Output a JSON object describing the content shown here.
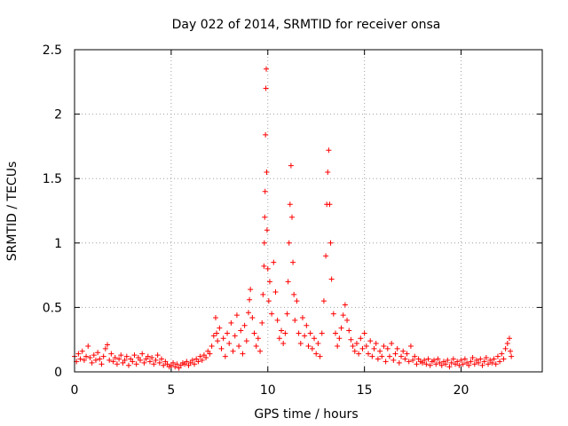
{
  "chart_data": {
    "type": "scatter",
    "title": "Day 022 of 2014, SRMTID for receiver onsa",
    "xlabel": "GPS time / hours",
    "ylabel": "SRMTID / TECUs",
    "xlim": [
      0,
      24.2
    ],
    "ylim": [
      0,
      2.5
    ],
    "x_ticks": [
      0,
      5,
      10,
      15,
      20
    ],
    "y_ticks": [
      0,
      0.5,
      1,
      1.5,
      2,
      2.5
    ],
    "x_tick_labels": [
      "0",
      "5",
      "10",
      "15",
      "20"
    ],
    "y_tick_labels": [
      "0",
      "0.5",
      "1",
      "1.5",
      "2",
      "2.5"
    ],
    "grid": true,
    "marker": "+",
    "series_color": "#ff0000",
    "series": [
      {
        "name": "SRMTID",
        "points": [
          [
            0.0,
            0.12
          ],
          [
            0.1,
            0.08
          ],
          [
            0.2,
            0.14
          ],
          [
            0.3,
            0.1
          ],
          [
            0.4,
            0.16
          ],
          [
            0.5,
            0.09
          ],
          [
            0.6,
            0.12
          ],
          [
            0.7,
            0.2
          ],
          [
            0.8,
            0.11
          ],
          [
            0.9,
            0.07
          ],
          [
            1.0,
            0.13
          ],
          [
            1.1,
            0.09
          ],
          [
            1.2,
            0.15
          ],
          [
            1.3,
            0.1
          ],
          [
            1.4,
            0.06
          ],
          [
            1.5,
            0.12
          ],
          [
            1.6,
            0.18
          ],
          [
            1.7,
            0.21
          ],
          [
            1.8,
            0.09
          ],
          [
            1.9,
            0.14
          ],
          [
            2.0,
            0.08
          ],
          [
            2.1,
            0.11
          ],
          [
            2.2,
            0.06
          ],
          [
            2.3,
            0.1
          ],
          [
            2.4,
            0.13
          ],
          [
            2.5,
            0.07
          ],
          [
            2.6,
            0.09
          ],
          [
            2.7,
            0.12
          ],
          [
            2.8,
            0.05
          ],
          [
            2.9,
            0.1
          ],
          [
            3.0,
            0.08
          ],
          [
            3.1,
            0.13
          ],
          [
            3.2,
            0.06
          ],
          [
            3.3,
            0.11
          ],
          [
            3.4,
            0.09
          ],
          [
            3.5,
            0.14
          ],
          [
            3.6,
            0.07
          ],
          [
            3.7,
            0.1
          ],
          [
            3.8,
            0.12
          ],
          [
            3.9,
            0.08
          ],
          [
            4.0,
            0.11
          ],
          [
            4.1,
            0.06
          ],
          [
            4.2,
            0.09
          ],
          [
            4.3,
            0.13
          ],
          [
            4.4,
            0.07
          ],
          [
            4.5,
            0.1
          ],
          [
            4.6,
            0.05
          ],
          [
            4.7,
            0.08
          ],
          [
            4.8,
            0.06
          ],
          [
            4.9,
            0.04
          ],
          [
            5.0,
            0.05
          ],
          [
            5.1,
            0.07
          ],
          [
            5.2,
            0.04
          ],
          [
            5.3,
            0.06
          ],
          [
            5.4,
            0.03
          ],
          [
            5.5,
            0.05
          ],
          [
            5.6,
            0.07
          ],
          [
            5.7,
            0.06
          ],
          [
            5.8,
            0.08
          ],
          [
            5.9,
            0.05
          ],
          [
            6.0,
            0.07
          ],
          [
            6.1,
            0.09
          ],
          [
            6.2,
            0.06
          ],
          [
            6.3,
            0.1
          ],
          [
            6.4,
            0.08
          ],
          [
            6.5,
            0.12
          ],
          [
            6.6,
            0.09
          ],
          [
            6.7,
            0.13
          ],
          [
            6.8,
            0.11
          ],
          [
            6.9,
            0.16
          ],
          [
            7.0,
            0.14
          ],
          [
            7.1,
            0.2
          ],
          [
            7.2,
            0.28
          ],
          [
            7.3,
            0.42
          ],
          [
            7.35,
            0.3
          ],
          [
            7.4,
            0.24
          ],
          [
            7.5,
            0.34
          ],
          [
            7.6,
            0.18
          ],
          [
            7.7,
            0.26
          ],
          [
            7.8,
            0.12
          ],
          [
            7.9,
            0.3
          ],
          [
            8.0,
            0.22
          ],
          [
            8.1,
            0.38
          ],
          [
            8.2,
            0.16
          ],
          [
            8.3,
            0.28
          ],
          [
            8.4,
            0.44
          ],
          [
            8.5,
            0.2
          ],
          [
            8.6,
            0.32
          ],
          [
            8.7,
            0.14
          ],
          [
            8.8,
            0.36
          ],
          [
            8.9,
            0.24
          ],
          [
            9.0,
            0.46
          ],
          [
            9.05,
            0.56
          ],
          [
            9.1,
            0.64
          ],
          [
            9.2,
            0.42
          ],
          [
            9.3,
            0.3
          ],
          [
            9.4,
            0.2
          ],
          [
            9.5,
            0.26
          ],
          [
            9.6,
            0.16
          ],
          [
            9.7,
            0.38
          ],
          [
            9.75,
            0.6
          ],
          [
            9.8,
            0.82
          ],
          [
            9.82,
            1.0
          ],
          [
            9.84,
            1.2
          ],
          [
            9.86,
            1.4
          ],
          [
            9.88,
            1.84
          ],
          [
            9.9,
            2.2
          ],
          [
            9.92,
            2.35
          ],
          [
            9.94,
            1.55
          ],
          [
            9.96,
            1.1
          ],
          [
            10.0,
            0.8
          ],
          [
            10.05,
            0.55
          ],
          [
            10.1,
            0.7
          ],
          [
            10.2,
            0.45
          ],
          [
            10.3,
            0.85
          ],
          [
            10.4,
            0.62
          ],
          [
            10.5,
            0.4
          ],
          [
            10.6,
            0.26
          ],
          [
            10.7,
            0.32
          ],
          [
            10.8,
            0.22
          ],
          [
            10.9,
            0.3
          ],
          [
            11.0,
            0.45
          ],
          [
            11.05,
            0.7
          ],
          [
            11.1,
            1.0
          ],
          [
            11.15,
            1.3
          ],
          [
            11.2,
            1.6
          ],
          [
            11.25,
            1.2
          ],
          [
            11.3,
            0.85
          ],
          [
            11.35,
            0.6
          ],
          [
            11.4,
            0.4
          ],
          [
            11.5,
            0.55
          ],
          [
            11.6,
            0.3
          ],
          [
            11.7,
            0.22
          ],
          [
            11.8,
            0.42
          ],
          [
            11.9,
            0.28
          ],
          [
            12.0,
            0.36
          ],
          [
            12.1,
            0.2
          ],
          [
            12.2,
            0.3
          ],
          [
            12.3,
            0.18
          ],
          [
            12.4,
            0.26
          ],
          [
            12.5,
            0.14
          ],
          [
            12.6,
            0.22
          ],
          [
            12.7,
            0.12
          ],
          [
            12.8,
            0.3
          ],
          [
            12.9,
            0.55
          ],
          [
            13.0,
            0.9
          ],
          [
            13.05,
            1.3
          ],
          [
            13.1,
            1.55
          ],
          [
            13.15,
            1.72
          ],
          [
            13.2,
            1.3
          ],
          [
            13.25,
            1.0
          ],
          [
            13.3,
            0.72
          ],
          [
            13.4,
            0.45
          ],
          [
            13.5,
            0.3
          ],
          [
            13.6,
            0.2
          ],
          [
            13.7,
            0.26
          ],
          [
            13.8,
            0.34
          ],
          [
            13.9,
            0.44
          ],
          [
            14.0,
            0.52
          ],
          [
            14.1,
            0.4
          ],
          [
            14.2,
            0.32
          ],
          [
            14.3,
            0.25
          ],
          [
            14.4,
            0.2
          ],
          [
            14.5,
            0.16
          ],
          [
            14.6,
            0.22
          ],
          [
            14.7,
            0.14
          ],
          [
            14.8,
            0.26
          ],
          [
            14.9,
            0.18
          ],
          [
            15.0,
            0.3
          ],
          [
            15.1,
            0.2
          ],
          [
            15.2,
            0.14
          ],
          [
            15.3,
            0.24
          ],
          [
            15.4,
            0.12
          ],
          [
            15.5,
            0.18
          ],
          [
            15.6,
            0.22
          ],
          [
            15.7,
            0.1
          ],
          [
            15.8,
            0.16
          ],
          [
            15.9,
            0.12
          ],
          [
            16.0,
            0.2
          ],
          [
            16.1,
            0.08
          ],
          [
            16.2,
            0.18
          ],
          [
            16.3,
            0.12
          ],
          [
            16.4,
            0.22
          ],
          [
            16.5,
            0.09
          ],
          [
            16.6,
            0.14
          ],
          [
            16.7,
            0.18
          ],
          [
            16.8,
            0.07
          ],
          [
            16.9,
            0.12
          ],
          [
            17.0,
            0.16
          ],
          [
            17.1,
            0.1
          ],
          [
            17.2,
            0.14
          ],
          [
            17.3,
            0.08
          ],
          [
            17.4,
            0.2
          ],
          [
            17.5,
            0.09
          ],
          [
            17.6,
            0.12
          ],
          [
            17.7,
            0.06
          ],
          [
            17.8,
            0.1
          ],
          [
            17.9,
            0.08
          ],
          [
            18.0,
            0.07
          ],
          [
            18.1,
            0.09
          ],
          [
            18.2,
            0.06
          ],
          [
            18.3,
            0.1
          ],
          [
            18.4,
            0.05
          ],
          [
            18.5,
            0.08
          ],
          [
            18.6,
            0.09
          ],
          [
            18.7,
            0.06
          ],
          [
            18.8,
            0.1
          ],
          [
            18.9,
            0.07
          ],
          [
            19.0,
            0.05
          ],
          [
            19.1,
            0.08
          ],
          [
            19.2,
            0.06
          ],
          [
            19.3,
            0.09
          ],
          [
            19.4,
            0.04
          ],
          [
            19.5,
            0.07
          ],
          [
            19.6,
            0.1
          ],
          [
            19.7,
            0.06
          ],
          [
            19.8,
            0.08
          ],
          [
            19.9,
            0.05
          ],
          [
            20.0,
            0.09
          ],
          [
            20.1,
            0.06
          ],
          [
            20.2,
            0.1
          ],
          [
            20.3,
            0.07
          ],
          [
            20.4,
            0.05
          ],
          [
            20.5,
            0.08
          ],
          [
            20.6,
            0.11
          ],
          [
            20.7,
            0.06
          ],
          [
            20.8,
            0.09
          ],
          [
            20.9,
            0.07
          ],
          [
            21.0,
            0.1
          ],
          [
            21.1,
            0.05
          ],
          [
            21.2,
            0.08
          ],
          [
            21.3,
            0.11
          ],
          [
            21.4,
            0.06
          ],
          [
            21.5,
            0.09
          ],
          [
            21.6,
            0.07
          ],
          [
            21.7,
            0.1
          ],
          [
            21.8,
            0.06
          ],
          [
            21.9,
            0.12
          ],
          [
            22.0,
            0.08
          ],
          [
            22.1,
            0.14
          ],
          [
            22.2,
            0.1
          ],
          [
            22.3,
            0.18
          ],
          [
            22.4,
            0.22
          ],
          [
            22.5,
            0.26
          ],
          [
            22.55,
            0.16
          ],
          [
            22.6,
            0.12
          ]
        ]
      }
    ]
  }
}
